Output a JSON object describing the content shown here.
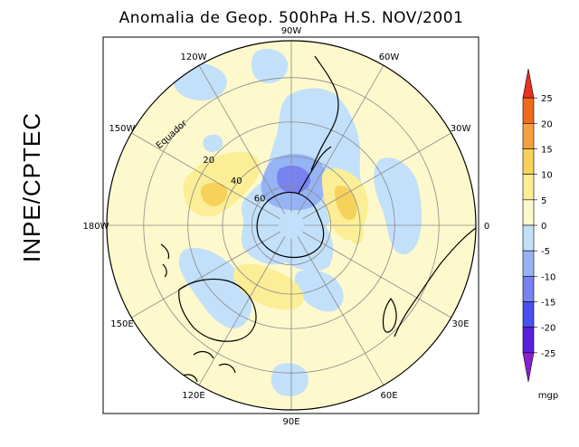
{
  "title": "Anomalia de Geop. 500hPa H.S. NOV/2001",
  "side_label": "INPE/CPTEC",
  "units": "mgp",
  "longitude_labels": [
    {
      "text": "90W",
      "lon": -90
    },
    {
      "text": "60W",
      "lon": -60
    },
    {
      "text": "30W",
      "lon": -30
    },
    {
      "text": "0",
      "lon": 0
    },
    {
      "text": "30E",
      "lon": 30
    },
    {
      "text": "60E",
      "lon": 60
    },
    {
      "text": "90E",
      "lon": 90
    },
    {
      "text": "120E",
      "lon": 120
    },
    {
      "text": "150E",
      "lon": 150
    },
    {
      "text": "180W",
      "lon": 180
    },
    {
      "text": "150W",
      "lon": -150
    },
    {
      "text": "120W",
      "lon": -120
    }
  ],
  "latitude_labels": [
    {
      "text": "Equador",
      "lat": 0
    },
    {
      "text": "20",
      "lat": -20
    },
    {
      "text": "40",
      "lat": -40
    },
    {
      "text": "60",
      "lat": -60
    }
  ],
  "colorbar": {
    "levels": [
      "25",
      "20",
      "15",
      "10",
      "5",
      "0",
      "-5",
      "-10",
      "-15",
      "-20",
      "-25"
    ],
    "colors": [
      "#e8321e",
      "#f06a1e",
      "#f5a03c",
      "#f7d25a",
      "#fbee96",
      "#fdf9cc",
      "#c3e0fa",
      "#96b4f5",
      "#7882f0",
      "#4b50f0",
      "#5a1edc",
      "#8c1ed2"
    ]
  },
  "colors": {
    "background_field": "#fdf9cc",
    "neg_weak": "#c3e0fa",
    "neg_moderate": "#96b4f5",
    "neg_strong": "#7882f0",
    "pos_weak": "#fbee96",
    "pos_moderate": "#f7d25a"
  }
}
